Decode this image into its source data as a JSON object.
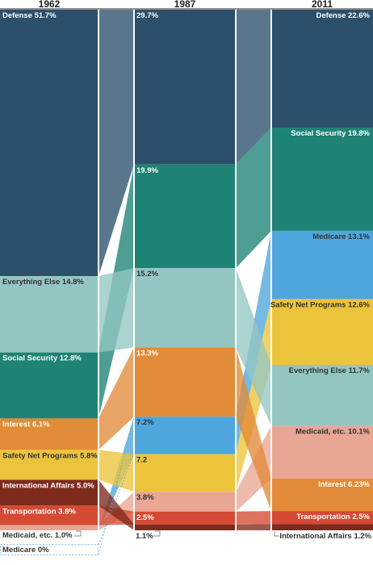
{
  "chart_data": {
    "type": "stacked-bar-flow",
    "columns": [
      "1962",
      "1987",
      "2011"
    ],
    "series": [
      {
        "name": "Defense",
        "color": "#2c4f6b",
        "values": [
          51.7,
          29.7,
          22.6
        ],
        "labels": [
          "Defense 51.7%",
          "29.7%",
          "Defense 22.6%"
        ]
      },
      {
        "name": "Social Security",
        "color": "#1e8374",
        "values": [
          12.8,
          19.9,
          19.8
        ],
        "labels": [
          "Social Security 12.8%",
          "19.9%",
          "Social Security 19.8%"
        ]
      },
      {
        "name": "Medicare",
        "color": "#4fa6dd",
        "values": [
          0,
          7.2,
          13.1
        ],
        "labels": [
          "Medicare 0%",
          "7.2%",
          "Medicare 13.1%"
        ]
      },
      {
        "name": "Safety Net Programs",
        "color": "#ecc43b",
        "values": [
          5.8,
          7.2,
          12.6
        ],
        "labels": [
          "Safety Net Programs 5.8%",
          "7.2",
          "Safety Net Programs 12.6%"
        ]
      },
      {
        "name": "Everything Else",
        "color": "#93c6c3",
        "values": [
          14.8,
          15.2,
          11.7
        ],
        "labels": [
          "Everything Else 14.8%",
          "15.2%",
          "Everything Else 11.7%"
        ]
      },
      {
        "name": "Medicaid, etc.",
        "color": "#e9a694",
        "values": [
          1.0,
          3.8,
          10.1
        ],
        "labels": [
          "Medicaid, etc. 1.0%",
          "3.8%",
          "Medicaid, etc. 10.1%"
        ]
      },
      {
        "name": "Interest",
        "color": "#e28b38",
        "values": [
          6.1,
          13.3,
          6.23
        ],
        "labels": [
          "Interest 6.1%",
          "13.3%",
          "Interest 6.23%"
        ]
      },
      {
        "name": "Transportation",
        "color": "#d54a32",
        "values": [
          3.8,
          2.5,
          2.5
        ],
        "labels": [
          "Transportation 3.8%",
          "2.5%",
          "Transportation 2.5%"
        ]
      },
      {
        "name": "International Affairs",
        "color": "#7e2a1c",
        "values": [
          5.0,
          1.1,
          1.2
        ],
        "labels": [
          "International Affairs 5.0%",
          "1.1%",
          "International Affairs 1.2%"
        ]
      }
    ],
    "stack_order": [
      [
        "Defense",
        "Everything Else",
        "Social Security",
        "Interest",
        "Safety Net Programs",
        "International Affairs",
        "Transportation",
        "Medicaid, etc.",
        "Medicare"
      ],
      [
        "Defense",
        "Social Security",
        "Everything Else",
        "Interest",
        "Medicare",
        "Safety Net Programs",
        "Medicaid, etc.",
        "Transportation",
        "International Affairs"
      ],
      [
        "Defense",
        "Social Security",
        "Medicare",
        "Safety Net Programs",
        "Everything Else",
        "Medicaid, etc.",
        "Interest",
        "Transportation",
        "International Affairs"
      ]
    ],
    "label_align": [
      "left",
      "left",
      "right"
    ],
    "ylim": [
      0,
      100
    ]
  }
}
